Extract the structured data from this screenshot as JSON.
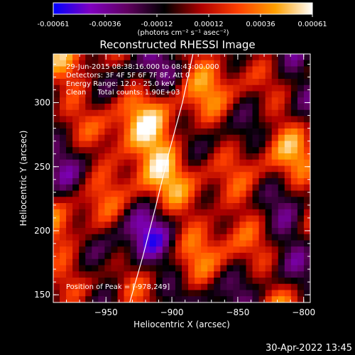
{
  "chart_data": {
    "type": "heatmap",
    "title": "Reconstructed RHESSI Image",
    "xlabel": "Heliocentric X (arcsec)",
    "ylabel": "Heliocentric Y (arcsec)",
    "xlim": [
      -990,
      -795
    ],
    "ylim": [
      144,
      338
    ],
    "xticks": [
      -950,
      -900,
      -850,
      -800
    ],
    "yticks": [
      150,
      200,
      250,
      300
    ],
    "colorbar": {
      "ticks": [
        "-0.00061",
        "-0.00036",
        "-0.00012",
        "0.00012",
        "0.00036",
        "0.00061"
      ],
      "range": [
        -0.00061,
        0.00061
      ],
      "colormap": [
        "#0000ff",
        "#8000c0",
        "#600060",
        "#000000",
        "#b00000",
        "#ff4000",
        "#ffa000",
        "#ffffff"
      ],
      "unit_label": "(photons cm⁻² s⁻¹ asec⁻²)"
    },
    "annotations": [
      "29-Jun-2015 08:38:16.000 to 08:43:00.000",
      "Detectors: 3F 4F 5F 6F 7F 8F, Att 0",
      "Energy Range: 12.0 - 25.0 keV",
      "Clean     Total counts: 1.90E+03"
    ],
    "peak_label": "Position of Peak = [-978,249]",
    "limb_curve": [
      [
        -932,
        144
      ],
      [
        -922,
        180
      ],
      [
        -912,
        220
      ],
      [
        -902,
        262
      ],
      [
        -892,
        300
      ],
      [
        -884,
        338
      ]
    ],
    "grid_cols": 40,
    "grid_rows": 40
  },
  "footer": {
    "timestamp": "30-Apr-2022 13:45"
  }
}
